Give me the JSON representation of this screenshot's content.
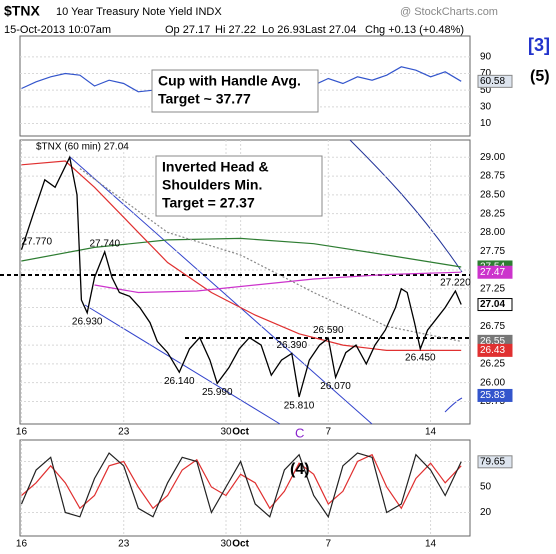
{
  "header": {
    "symbol": "$TNX",
    "name": "10 Year Treasury Note Yield INDX",
    "source": "@ StockCharts.com",
    "date": "15-Oct-2013 10:07am",
    "quote": [
      "Op 27.17",
      "Hi 27.22",
      "Lo 26.93",
      "Last 27.04",
      "Chg +0.13 (+0.48%)"
    ]
  },
  "wave_labels": [
    "[3]",
    "(5)"
  ],
  "chart_data": [
    {
      "type": "line",
      "annotation": [
        "Cup with Handle Avg.",
        "Target ~ 37.77"
      ],
      "xlim": [
        -0.1,
        30.7
      ],
      "ylim": [
        -5,
        115
      ],
      "yticks": [
        90,
        70,
        50,
        30,
        10
      ],
      "last_label": 60.58,
      "series": [
        {
          "color": "#3355cc",
          "x": [
            0,
            1,
            2,
            3,
            4,
            5,
            6,
            7,
            8,
            9,
            10,
            11,
            12,
            13,
            14,
            15,
            16,
            17,
            18,
            19,
            20,
            21,
            22,
            23,
            24,
            25,
            26,
            27,
            28,
            29,
            30.1
          ],
          "values": [
            52,
            60,
            66,
            70,
            68,
            55,
            62,
            58,
            48,
            50,
            46,
            52,
            56,
            50,
            54,
            58,
            52,
            56,
            62,
            60,
            56,
            64,
            58,
            66,
            62,
            68,
            78,
            74,
            66,
            72,
            60.58
          ]
        }
      ]
    },
    {
      "type": "line",
      "legend": "$TNX (60 min) 27.04",
      "annotation": [
        "Inverted Head &",
        "Shoulders Min.",
        "Target = 27.37"
      ],
      "wave_label": "C",
      "xlim": [
        -0.1,
        30.7
      ],
      "ylim": [
        25.45,
        29.23
      ],
      "yticks": [
        {
          "value": 29,
          "label": "29.00"
        },
        {
          "value": 28.75,
          "label": "28.75"
        },
        {
          "value": 28.5,
          "label": "28.50"
        },
        {
          "value": 28.25,
          "label": "28.25"
        },
        {
          "value": 28,
          "label": "28.00"
        },
        {
          "value": 27.75,
          "label": "27.75"
        },
        {
          "value": 27.5,
          "label": "27.50"
        },
        {
          "value": 27.25,
          "label": "27.25"
        },
        {
          "value": 27,
          "label": "27.00"
        },
        {
          "value": 26.75,
          "label": "26.75"
        },
        {
          "value": 26.5,
          "label": "26.50"
        },
        {
          "value": 26.25,
          "label": "26.25"
        },
        {
          "value": 26,
          "label": "26.00"
        },
        {
          "value": 25.75,
          "label": "25.75"
        }
      ],
      "xticks": [
        {
          "value": 0,
          "label": "16"
        },
        {
          "value": 7,
          "label": "23"
        },
        {
          "value": 14,
          "label": "30"
        },
        {
          "value": 15,
          "label": "Oct"
        },
        {
          "value": 21,
          "label": "7"
        },
        {
          "value": 28,
          "label": "14"
        }
      ],
      "right_labels": [
        27.54,
        27.47,
        27.04,
        26.55,
        26.43,
        25.83
      ],
      "right_label_colors": [
        "#2e7d32",
        "#cc33cc",
        "#000000",
        "#777777",
        "#e03030",
        "#3355cc"
      ],
      "series": [
        {
          "color": "#2e7d32",
          "x": [
            0,
            5,
            10,
            15,
            20,
            25,
            30.1
          ],
          "values": [
            27.62,
            27.8,
            27.9,
            27.92,
            27.85,
            27.7,
            27.54
          ]
        },
        {
          "color": "#e03030",
          "x": [
            0,
            3,
            5,
            8,
            10,
            13,
            16,
            19,
            22,
            25,
            30.1
          ],
          "values": [
            28.9,
            28.95,
            28.6,
            28.0,
            27.6,
            27.2,
            26.9,
            26.65,
            26.5,
            26.43,
            26.43
          ]
        },
        {
          "color": "#cc33cc",
          "x": [
            5,
            8,
            12,
            16,
            20,
            25,
            30.1
          ],
          "values": [
            27.3,
            27.2,
            27.22,
            27.3,
            27.38,
            27.44,
            27.47
          ]
        },
        {
          "color": "#888888",
          "dashed": true,
          "x": [
            4,
            10,
            15,
            20,
            25,
            30.1
          ],
          "values": [
            28.85,
            28.0,
            27.7,
            27.2,
            26.75,
            26.55
          ]
        },
        {
          "color": "#000000",
          "x": [
            0,
            0.9,
            1.6,
            2.3,
            3.3,
            3.8,
            4.1,
            4.5,
            5,
            5.7,
            6.2,
            6.7,
            7.4,
            8.1,
            8.8,
            9.3,
            10,
            10.8,
            11.5,
            12.2,
            12.9,
            13.4,
            14.2,
            14.9,
            15.6,
            16.4,
            17.1,
            17.8,
            18.5,
            19,
            19.7,
            20.4,
            21,
            21.5,
            22.2,
            22.9,
            23.6,
            24.2,
            24.9,
            25.6,
            26,
            26.4,
            26.9,
            27.3,
            27.8,
            28.4,
            29,
            29.7,
            30.1
          ],
          "values": [
            27.77,
            28.3,
            28.7,
            28.6,
            29.0,
            28.5,
            27.1,
            26.93,
            27.4,
            27.74,
            27.4,
            27.2,
            27.15,
            27.0,
            26.8,
            26.55,
            26.4,
            26.14,
            26.45,
            26.6,
            26.3,
            25.99,
            26.2,
            26.45,
            26.6,
            26.5,
            26.1,
            26.3,
            26.39,
            25.81,
            26.3,
            26.5,
            26.59,
            26.07,
            26.4,
            26.5,
            26.25,
            26.5,
            26.7,
            27.0,
            27.25,
            27.2,
            26.8,
            26.45,
            26.7,
            26.85,
            27.0,
            27.22,
            27.04
          ],
          "value_labels": [
            "27.770",
            null,
            null,
            null,
            null,
            null,
            null,
            "26.930",
            null,
            "27.740",
            null,
            null,
            null,
            null,
            null,
            null,
            null,
            "26.140",
            null,
            null,
            null,
            "25.990",
            null,
            null,
            null,
            null,
            null,
            null,
            "26.390",
            "25.810",
            null,
            null,
            "26.590",
            "26.070",
            null,
            null,
            null,
            null,
            null,
            null,
            null,
            null,
            null,
            "26.450",
            null,
            null,
            null,
            "27.220",
            null
          ]
        }
      ]
    },
    {
      "type": "line",
      "wave_label": "(4)",
      "xlim": [
        -0.1,
        30.7
      ],
      "ylim": [
        -7.6,
        105.3
      ],
      "yticks": [
        80,
        50,
        20
      ],
      "last_label": 79.65,
      "xticks": [
        {
          "value": 0,
          "label": "16"
        },
        {
          "value": 7,
          "label": "23"
        },
        {
          "value": 14,
          "label": "30"
        },
        {
          "value": 15,
          "label": "Oct"
        },
        {
          "value": 21,
          "label": "7"
        },
        {
          "value": 28,
          "label": "14"
        }
      ],
      "series": [
        {
          "color": "#e03030",
          "x": [
            0,
            1,
            2,
            3,
            4,
            5,
            6,
            7,
            8,
            9,
            10,
            11,
            12,
            13,
            14,
            15,
            16,
            17,
            18,
            19,
            20,
            21,
            22,
            23,
            24,
            25,
            26,
            27,
            28,
            29,
            30.1
          ],
          "values": [
            40,
            55,
            75,
            55,
            25,
            40,
            75,
            80,
            50,
            25,
            40,
            70,
            82,
            50,
            40,
            65,
            55,
            25,
            45,
            78,
            65,
            30,
            45,
            80,
            88,
            50,
            25,
            60,
            78,
            55,
            75
          ]
        },
        {
          "color": "#222222",
          "x": [
            0,
            1,
            2,
            3,
            4,
            5,
            6,
            7,
            8,
            9,
            10,
            11,
            12,
            13,
            14,
            15,
            16,
            17,
            18,
            19,
            20,
            21,
            22,
            23,
            24,
            25,
            26,
            27,
            28,
            29,
            30.1
          ],
          "values": [
            30,
            70,
            85,
            20,
            15,
            60,
            90,
            75,
            25,
            15,
            55,
            85,
            80,
            20,
            50,
            80,
            30,
            15,
            70,
            88,
            40,
            15,
            75,
            90,
            85,
            20,
            30,
            88,
            70,
            40,
            79.65
          ]
        }
      ]
    }
  ]
}
